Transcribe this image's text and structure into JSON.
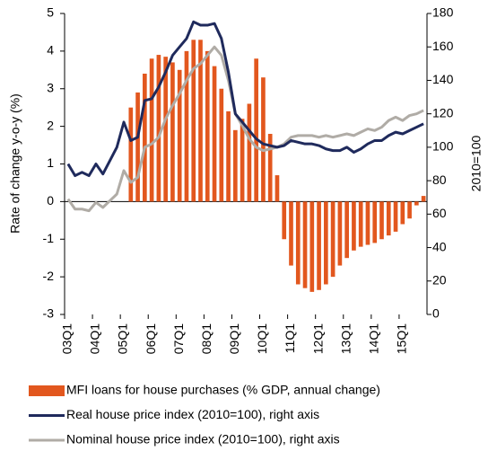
{
  "chart_data": {
    "type": "bar-line",
    "y_label": "Rate of change y-o-y (%)",
    "y2_label": "2010=100",
    "categories": [
      "03Q1",
      null,
      null,
      null,
      "04Q1",
      null,
      null,
      null,
      "05Q1",
      null,
      null,
      null,
      "06Q1",
      null,
      null,
      null,
      "07Q1",
      null,
      null,
      null,
      "08Q1",
      null,
      null,
      null,
      "09Q1",
      null,
      null,
      null,
      "10Q1",
      null,
      null,
      null,
      "11Q1",
      null,
      null,
      null,
      "12Q1",
      null,
      null,
      null,
      "13Q1",
      null,
      null,
      null,
      "14Q1",
      null,
      null,
      null,
      "15Q1",
      null,
      null,
      null
    ],
    "series": [
      {
        "name": "MFI loans for house purchases (% GDP, annual change)",
        "type": "bar",
        "color": "#e2571e",
        "values": [
          null,
          null,
          null,
          null,
          null,
          null,
          null,
          null,
          null,
          2.5,
          2.9,
          3.4,
          3.8,
          3.9,
          3.85,
          3.7,
          3.5,
          4.0,
          4.3,
          4.3,
          4.0,
          3.6,
          3.0,
          2.4,
          1.9,
          2.2,
          2.6,
          3.8,
          3.3,
          1.8,
          0.7,
          -1.0,
          -1.7,
          -2.2,
          -2.3,
          -2.4,
          -2.35,
          -2.2,
          -2.0,
          -1.7,
          -1.5,
          -1.3,
          -1.2,
          -1.15,
          -1.1,
          -1.0,
          -0.9,
          -0.8,
          -0.6,
          -0.45,
          -0.1,
          0.15
        ]
      },
      {
        "name": "Real house price index (2010=100), right axis",
        "type": "line",
        "axis": "y2",
        "color": "#1f2a5c",
        "values": [
          90,
          83,
          85,
          83,
          90,
          84,
          92,
          100,
          115,
          104,
          106,
          128,
          129,
          136,
          145,
          155,
          160,
          165,
          175,
          173,
          173,
          174,
          165,
          145,
          120,
          115,
          110,
          105,
          102,
          101,
          100,
          101,
          104,
          103,
          102,
          102,
          101,
          99,
          98,
          98,
          100,
          97,
          99,
          102,
          104,
          104,
          107,
          109,
          108,
          110,
          112,
          114
        ]
      },
      {
        "name": "Nominal house price index (2010=100), right axis",
        "type": "line",
        "axis": "y2",
        "color": "#b0aca6",
        "values": [
          69,
          63,
          63,
          62,
          67,
          64,
          68,
          72,
          86,
          79,
          82,
          100,
          102,
          106,
          117,
          125,
          132,
          140,
          147,
          150,
          155,
          160,
          155,
          140,
          120,
          113,
          105,
          100,
          98,
          99,
          100,
          102,
          106,
          107,
          107,
          107,
          106,
          107,
          106,
          107,
          108,
          107,
          109,
          111,
          110,
          112,
          116,
          118,
          116,
          119,
          120,
          122
        ]
      }
    ],
    "ylim": [
      -3,
      5
    ],
    "yticks": [
      -3,
      -2,
      -1,
      0,
      1,
      2,
      3,
      4,
      5
    ],
    "y2lim": [
      0,
      180
    ],
    "y2ticks": [
      0,
      20,
      40,
      60,
      80,
      100,
      120,
      140,
      160,
      180
    ]
  }
}
